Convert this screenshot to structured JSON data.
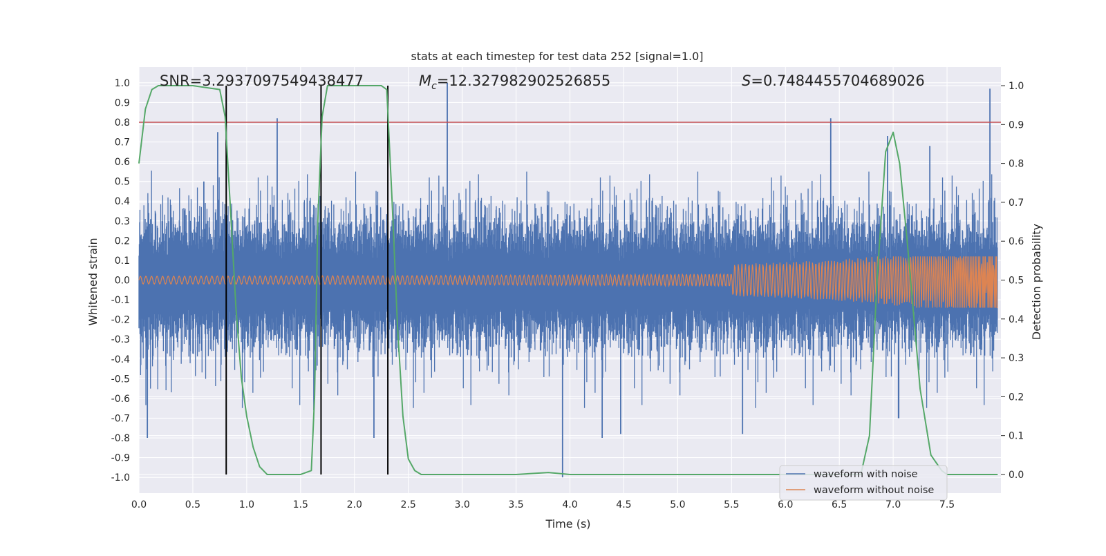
{
  "colors": {
    "plot_bg": "#eaeaf2",
    "grid": "#ffffff",
    "noisy": "#4c72b0",
    "clean": "#dd8452",
    "prob": "#55a868",
    "threshold": "#c44e52",
    "vline": "#000000",
    "text": "#262626"
  },
  "chart_data": {
    "type": "line",
    "title": "stats at each timestep for test data 252 [signal=1.0]",
    "xlabel": "Time (s)",
    "ylabel_left": "Whitened strain",
    "ylabel_right": "Detection probability",
    "xlim": [
      0.0,
      8.0
    ],
    "ylim_left": [
      -1.08,
      1.08
    ],
    "ylim_right": [
      -0.048,
      1.048
    ],
    "x_ticks": [
      "0.0",
      "0.5",
      "1.0",
      "1.5",
      "2.0",
      "2.5",
      "3.0",
      "3.5",
      "4.0",
      "4.5",
      "5.0",
      "5.5",
      "6.0",
      "6.5",
      "7.0",
      "7.5"
    ],
    "y_ticks_left": [
      "1.0",
      "0.9",
      "0.8",
      "0.7",
      "0.6",
      "0.5",
      "0.4",
      "0.3",
      "0.2",
      "0.1",
      "0.0",
      "-0.1",
      "-0.2",
      "-0.3",
      "-0.4",
      "-0.5",
      "-0.6",
      "-0.7",
      "-0.8",
      "-0.9",
      "-1.0"
    ],
    "y_ticks_right": [
      "1.0",
      "0.9",
      "0.8",
      "0.7",
      "0.6",
      "0.5",
      "0.4",
      "0.3",
      "0.2",
      "0.1",
      "0.0"
    ],
    "annotations": {
      "snr": "SNR=3.2937097549438477",
      "mc_symbol": "M",
      "mc_sub": "c",
      "mc_value": "=12.327982902526855",
      "s_symbol": "S",
      "s_value": "=0.7484455704689026"
    },
    "threshold": 0.8,
    "vertical_lines": [
      0.81,
      1.69,
      2.31
    ],
    "legend": [
      "waveform with noise",
      "waveform without noise"
    ],
    "detection_probability": {
      "x": [
        0.0,
        0.06,
        0.12,
        0.18,
        0.25,
        0.5,
        0.75,
        0.8,
        0.85,
        0.9,
        0.95,
        1.0,
        1.06,
        1.12,
        1.19,
        1.3,
        1.5,
        1.6,
        1.63,
        1.66,
        1.7,
        1.75,
        1.8,
        2.0,
        2.25,
        2.3,
        2.35,
        2.4,
        2.45,
        2.5,
        2.56,
        2.62,
        3.0,
        3.5,
        3.8,
        4.0,
        6.7,
        6.78,
        6.85,
        6.93,
        7.0,
        7.06,
        7.13,
        7.25,
        7.35,
        7.45,
        7.5,
        7.97
      ],
      "y": [
        0.8,
        0.94,
        0.99,
        1.0,
        1.0,
        1.0,
        0.99,
        0.92,
        0.68,
        0.43,
        0.25,
        0.15,
        0.07,
        0.02,
        0.0,
        0.0,
        0.0,
        0.01,
        0.2,
        0.65,
        0.92,
        1.0,
        1.0,
        1.0,
        1.0,
        0.99,
        0.7,
        0.38,
        0.15,
        0.04,
        0.01,
        0.0,
        0.0,
        0.0,
        0.005,
        0.0,
        0.0,
        0.1,
        0.5,
        0.83,
        0.88,
        0.8,
        0.6,
        0.22,
        0.05,
        0.01,
        0.0,
        0.0
      ]
    },
    "noisy_peaks": {
      "x": [
        0.08,
        0.6,
        0.73,
        1.28,
        1.62,
        2.18,
        2.86,
        3.93,
        4.3,
        4.47,
        5.6,
        6.42,
        6.95,
        7.05,
        7.34,
        7.9,
        7.98
      ],
      "y": [
        -0.8,
        0.5,
        0.75,
        0.82,
        -0.66,
        -0.8,
        1.0,
        -1.0,
        -0.8,
        -0.78,
        -0.78,
        0.82,
        0.73,
        -0.7,
        0.68,
        0.97,
        -0.63
      ]
    }
  }
}
